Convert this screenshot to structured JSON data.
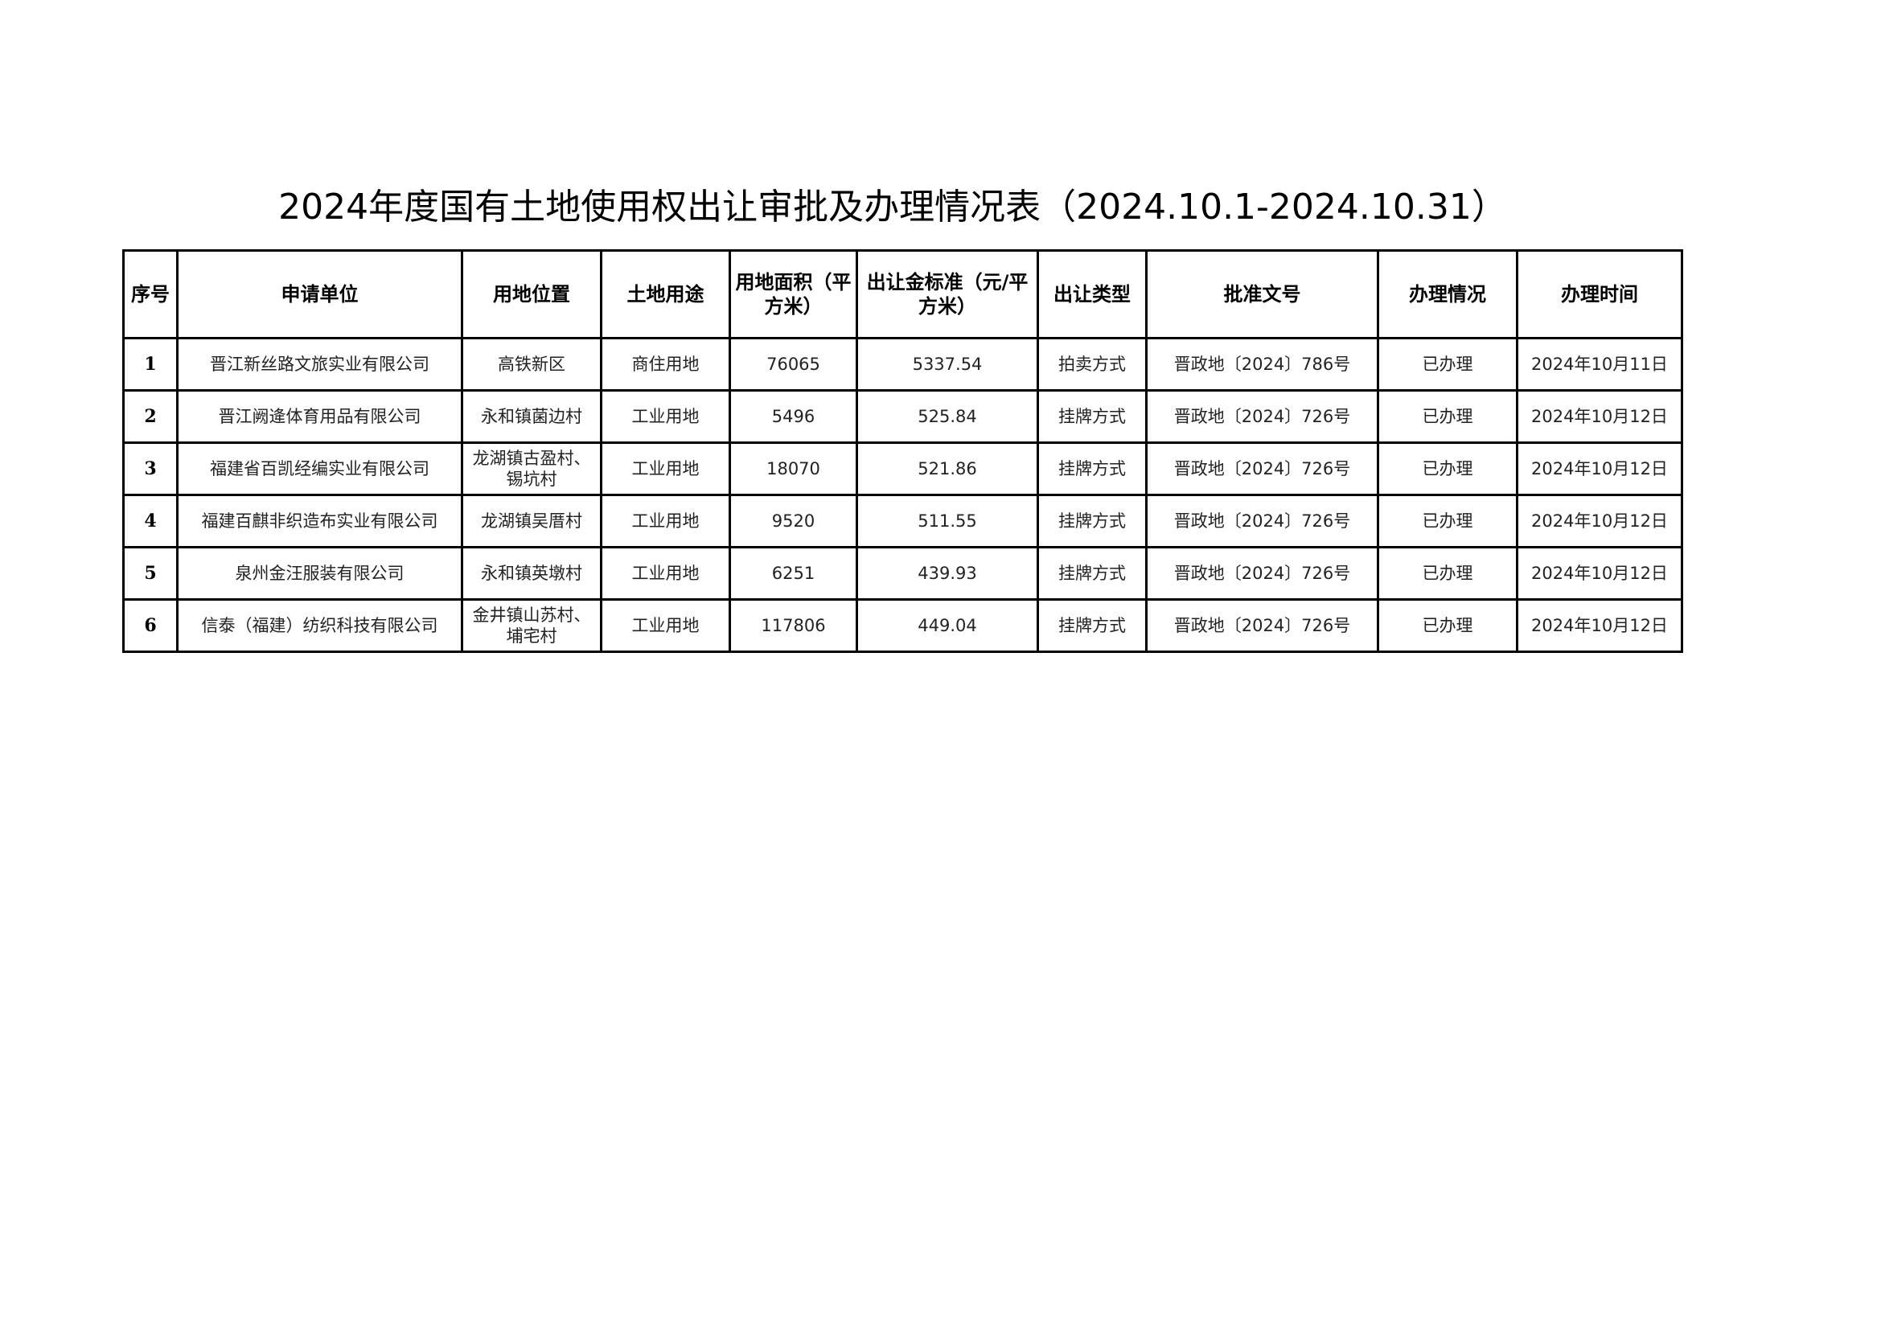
{
  "title": "2024年度国有土地使用权出让审批及办理情况表（2024.10.1-2024.10.31）",
  "table": {
    "headers": [
      "序号",
      "申请单位",
      "用地位置",
      "土地用途",
      "用地面积（平方米）",
      "出让金标准（元/平方米）",
      "出让类型",
      "批准文号",
      "办理情况",
      "办理时间"
    ],
    "rows": [
      [
        "1",
        "晋江新丝路文旅实业有限公司",
        "高铁新区",
        "商住用地",
        "76065",
        "5337.54",
        "拍卖方式",
        "晋政地〔2024〕786号",
        "已办理",
        "2024年10月11日"
      ],
      [
        "2",
        "晋江阙逄体育用品有限公司",
        "永和镇菌边村",
        "工业用地",
        "5496",
        "525.84",
        "挂牌方式",
        "晋政地〔2024〕726号",
        "已办理",
        "2024年10月12日"
      ],
      [
        "3",
        "福建省百凯经编实业有限公司",
        "龙湖镇古盈村、锡坑村",
        "工业用地",
        "18070",
        "521.86",
        "挂牌方式",
        "晋政地〔2024〕726号",
        "已办理",
        "2024年10月12日"
      ],
      [
        "4",
        "福建百麒非织造布实业有限公司",
        "龙湖镇吴厝村",
        "工业用地",
        "9520",
        "511.55",
        "挂牌方式",
        "晋政地〔2024〕726号",
        "已办理",
        "2024年10月12日"
      ],
      [
        "5",
        "泉州金汪服装有限公司",
        "永和镇英墩村",
        "工业用地",
        "6251",
        "439.93",
        "挂牌方式",
        "晋政地〔2024〕726号",
        "已办理",
        "2024年10月12日"
      ],
      [
        "6",
        "信泰（福建）纺织科技有限公司",
        "金井镇山苏村、埔宅村",
        "工业用地",
        "117806",
        "449.04",
        "挂牌方式",
        "晋政地〔2024〕726号",
        "已办理",
        "2024年10月12日"
      ]
    ]
  }
}
